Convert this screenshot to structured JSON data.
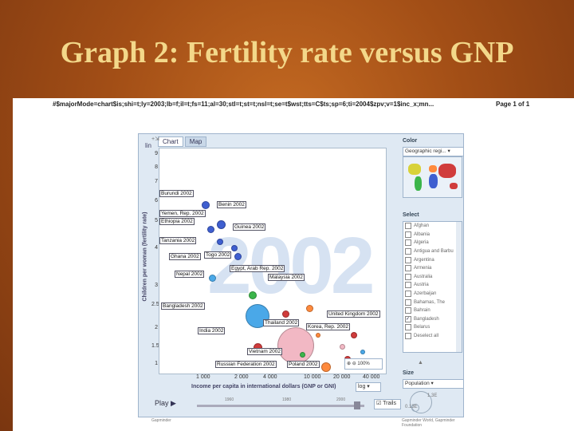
{
  "slide": {
    "title": "Graph 2: Fertility rate versus GNP"
  },
  "page_header": {
    "url": "#$majorMode=chart$is;shi=t;ly=2003;lb=f;il=t;fs=11;al=30;stl=t;st=t;nsl=t;se=t$wst;tts=C$ts;sp=6;ti=2004$zpv;v=1$inc_x;mn...",
    "page": "Page 1 of 1"
  },
  "tabs": [
    "Chart",
    "Map"
  ],
  "watermark_year": "2002",
  "y_axis": {
    "label": "Children per woman (fertility rate)",
    "scale_label": "lin",
    "ticks": [
      "9",
      "8",
      "7",
      "6",
      "5",
      "4",
      "3",
      "2.5",
      "2",
      "1.5",
      "1"
    ]
  },
  "x_axis": {
    "label": "Income per capita in international dollars (GNP or GNI)",
    "scale_label": "log",
    "ticks": [
      "1 000",
      "2 000",
      "4 000",
      "10 000",
      "20 000",
      "40 000"
    ]
  },
  "country_labels": [
    "Burundi 2002",
    "Benin 2002",
    "Yemen, Rep. 2002",
    "Ethiopia 2002",
    "Guinea 2002",
    "Tanzania 2002",
    "Ghana 2002",
    "Togo 2002",
    "Egypt, Arab Rep. 2002",
    "Nepal 2002",
    "Malaysia 2002",
    "Bangladesh 2002",
    "United Kingdom 2002",
    "Thailand 2002",
    "Korea, Rep. 2002",
    "India 2002",
    "Vietnam 2002",
    "Russian Federation 2002",
    "Poland 2002"
  ],
  "color_panel": {
    "header": "Color",
    "selected": "Geographic regi..."
  },
  "select_panel": {
    "header": "Select",
    "items": [
      "Afghan",
      "Albania",
      "Algeria",
      "Antigua and Barbu",
      "Argentina",
      "Armenia",
      "Australia",
      "Austria",
      "Azerbaijan",
      "Bahamas, The",
      "Bahrain",
      "Bangladesh",
      "Belarus"
    ],
    "checked_index": 11,
    "deselect": "Deselect all"
  },
  "zoom": {
    "value": "100%"
  },
  "size_panel": {
    "header": "Size",
    "selected": "Population",
    "max": "1.3E",
    "min": "0.13E"
  },
  "controls": {
    "play": "Play",
    "timeline": [
      "1960",
      "1980",
      "2000"
    ],
    "trails": "Trails"
  },
  "footer": {
    "left": "Gapminder",
    "right": "Gapminder World, Gapminder Foundation"
  }
}
